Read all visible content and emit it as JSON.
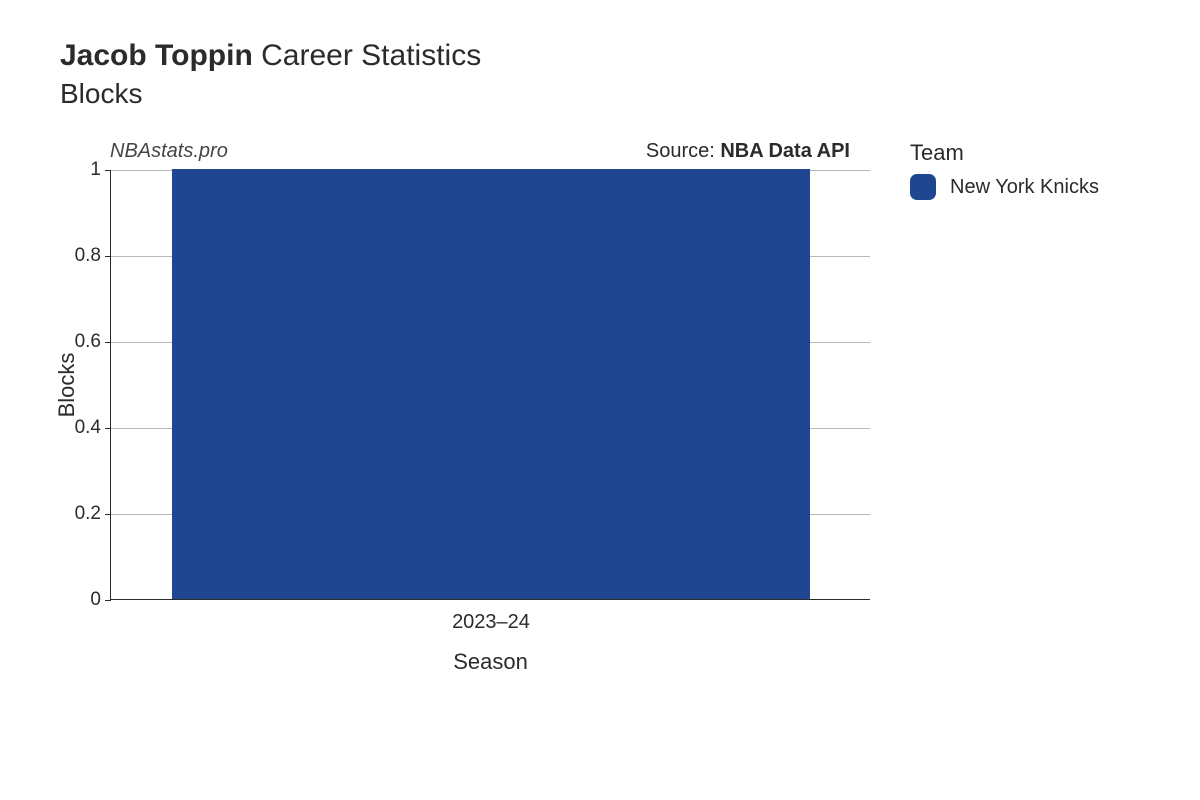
{
  "title": {
    "player_name": "Jacob Toppin",
    "suffix": "Career Statistics",
    "subtitle": "Blocks"
  },
  "watermark": "NBAstats.pro",
  "source": {
    "prefix": "Source: ",
    "name": "NBA Data API"
  },
  "legend": {
    "title": "Team",
    "items": [
      {
        "label": "New York Knicks",
        "color": "#1f4690"
      }
    ]
  },
  "chart": {
    "type": "bar",
    "y_axis": {
      "title": "Blocks",
      "min": 0,
      "max": 1,
      "ticks": [
        0,
        0.2,
        0.4,
        0.6,
        0.8,
        1
      ],
      "tick_labels": [
        "0",
        "0.2",
        "0.4",
        "0.6",
        "0.8",
        "1"
      ],
      "grid_color": "#b8b8b8",
      "label_fontsize": 19
    },
    "x_axis": {
      "title": "Season",
      "categories": [
        "2023–24"
      ],
      "label_fontsize": 20
    },
    "bars": [
      {
        "category": "2023–24",
        "value": 1,
        "color": "#1f4690",
        "width_frac": 0.84
      }
    ],
    "background_color": "#ffffff",
    "axis_color": "#2b2b2b"
  }
}
